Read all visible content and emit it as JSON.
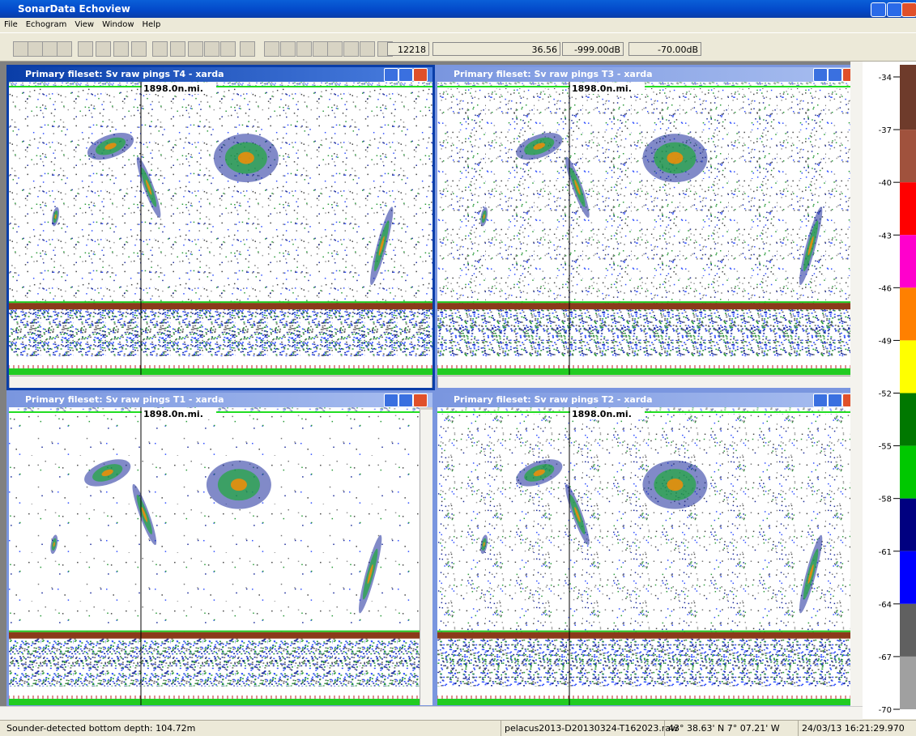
{
  "window": {
    "title": "SonarData Echoview",
    "menu": [
      "File",
      "Echogram",
      "View",
      "Window",
      "Help"
    ]
  },
  "toolbar": {
    "fields": [
      "12218",
      "36.56",
      "-999.00dB",
      "-70.00dB"
    ]
  },
  "echograms": [
    {
      "title": "Primary fileset: Sv raw pings T4 - xarda",
      "marker": "1898.0n.mi."
    },
    {
      "title": "Primary fileset: Sv raw pings T3 - xarda",
      "marker": "1898.0n.mi."
    },
    {
      "title": "Primary fileset: Sv raw pings T1 - xarda",
      "marker": "1898.0n.mi."
    },
    {
      "title": "Primary fileset: Sv raw pings T2 - xarda",
      "marker": "1898.0n.mi."
    }
  ],
  "colorscale": {
    "ticks": [
      -34,
      -37,
      -40,
      -43,
      -46,
      -49,
      -52,
      -55,
      -58,
      -61,
      -64,
      -67,
      -70
    ],
    "colors": [
      "#6e3b2b",
      "#a0523d",
      "#ff0000",
      "#ff00cc",
      "#ff8000",
      "#ffff00",
      "#007800",
      "#00c800",
      "#000080",
      "#0000ff",
      "#606060",
      "#a0a0a0"
    ]
  },
  "status": [
    "Sounder-detected bottom depth: 104.72m",
    "pelacus2013-D20130324-T162023.raw",
    "43° 38.63' N 7° 07.21' W",
    "24/03/13 16:21:29.970"
  ]
}
